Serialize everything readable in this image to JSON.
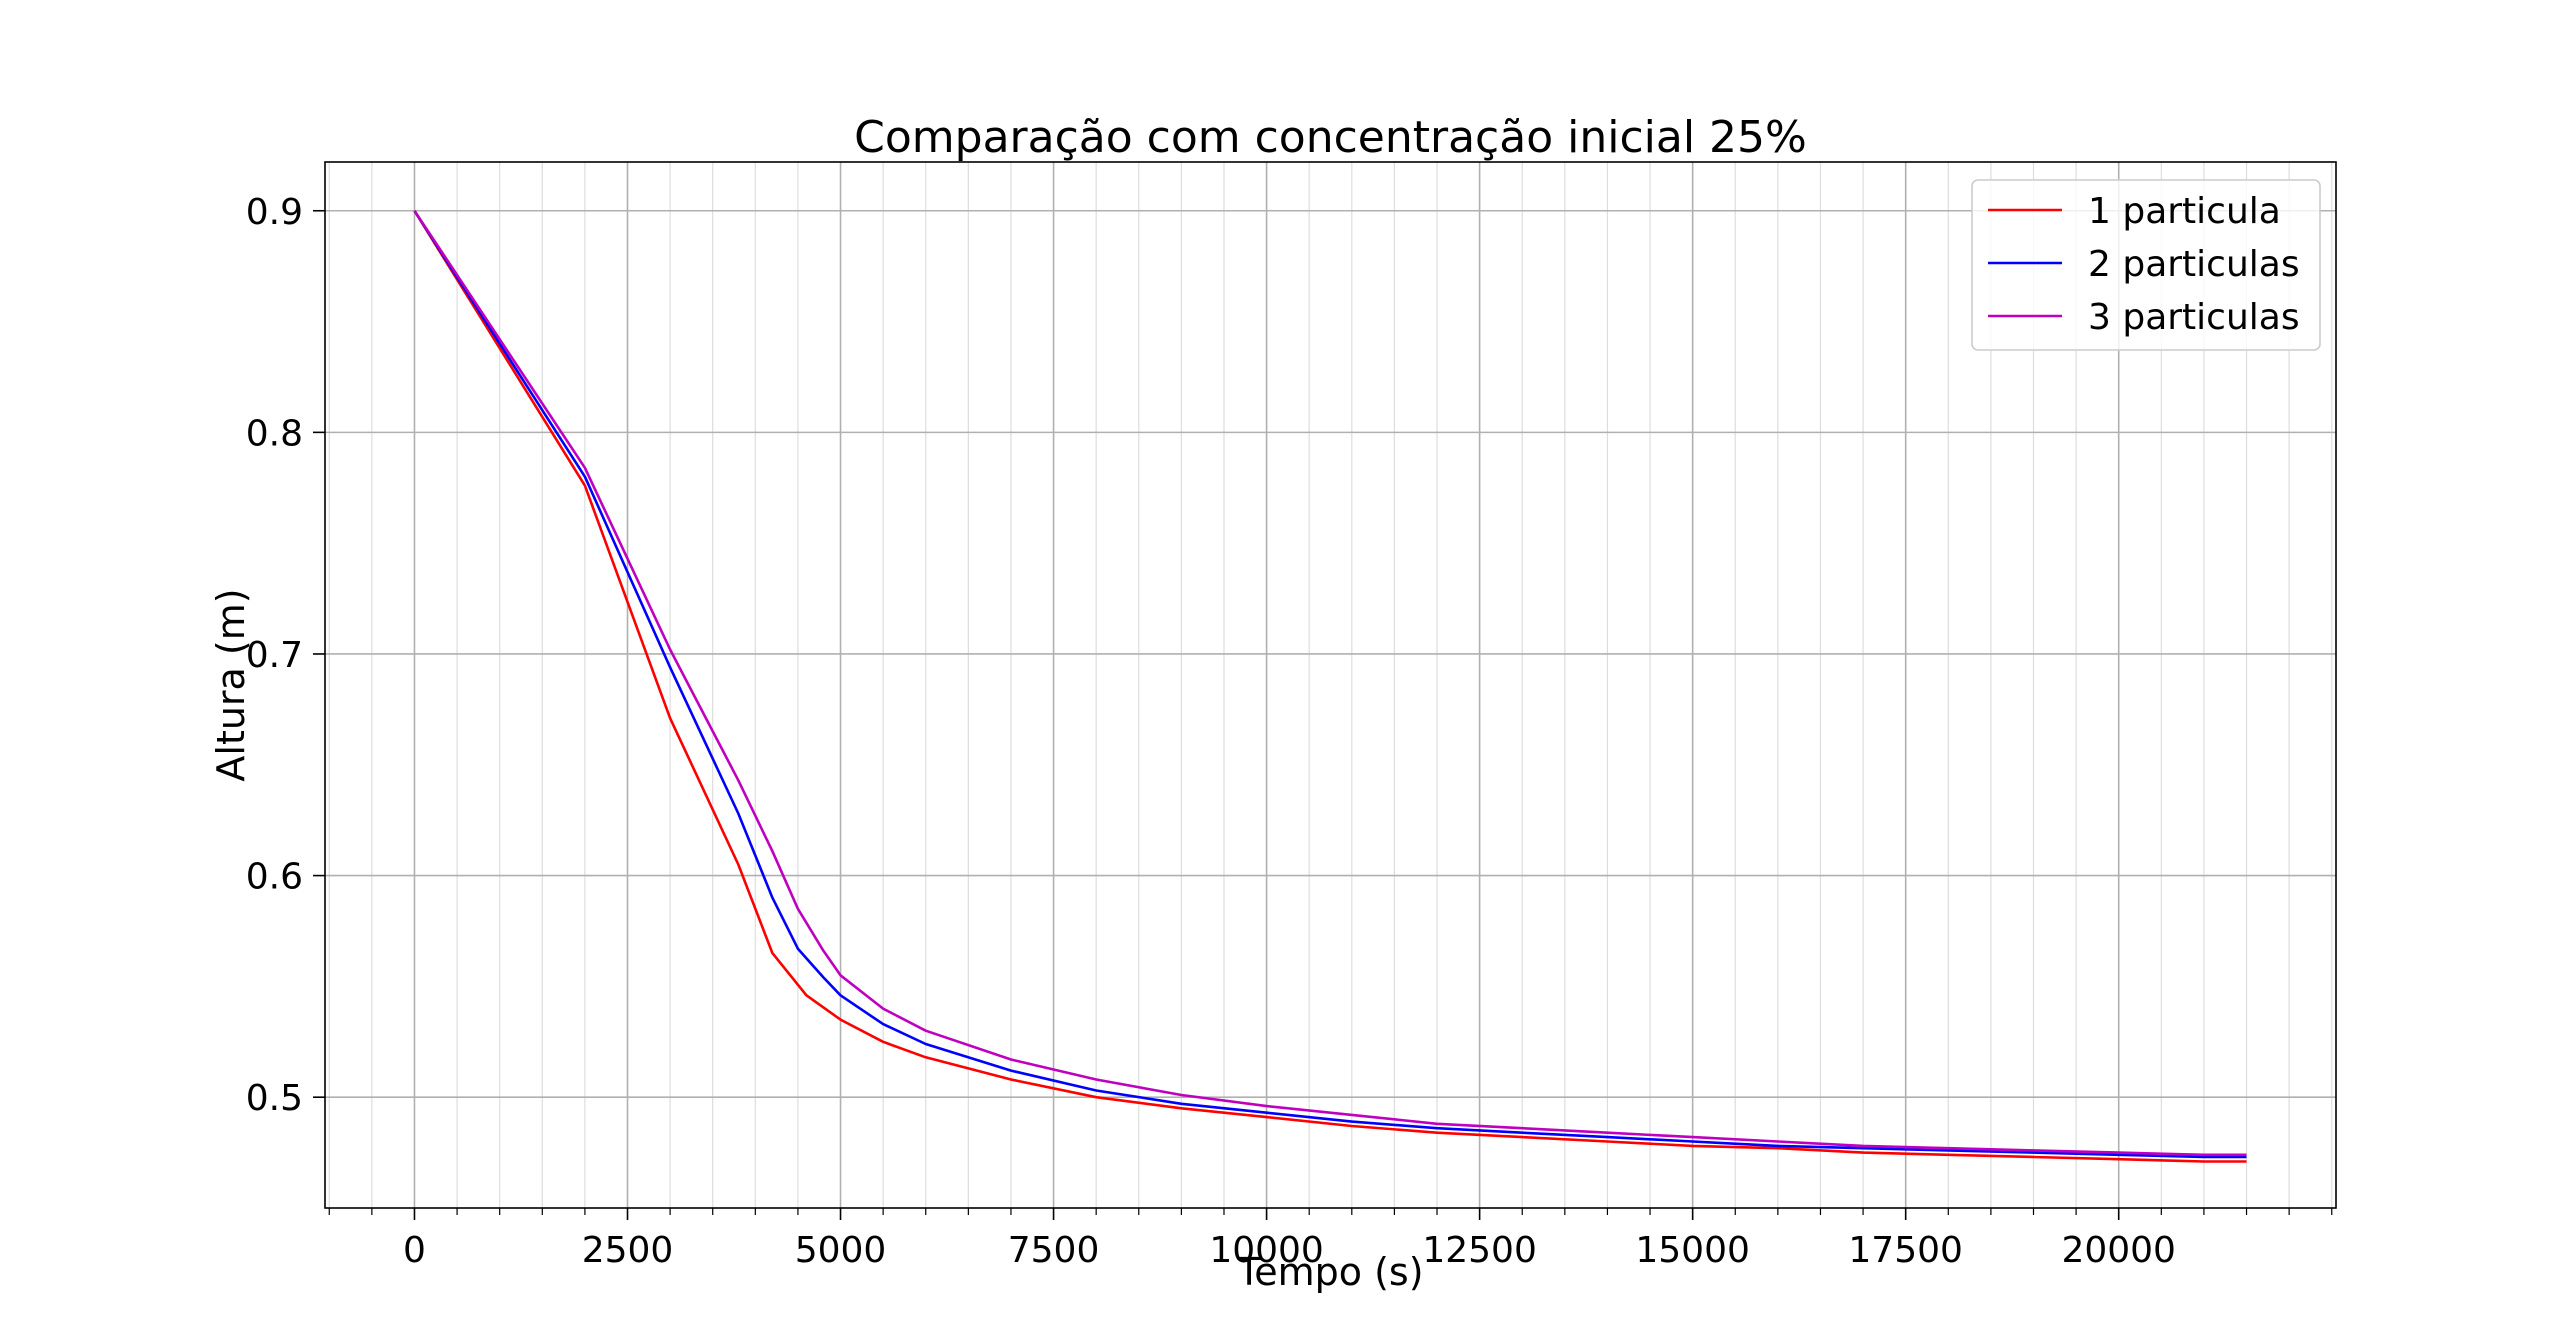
{
  "chart_data": {
    "type": "line",
    "title": "Comparação com concentração inicial 25%",
    "xlabel": "Tempo (s)",
    "ylabel": "Altura (m)",
    "xlim": [
      -1050,
      22550
    ],
    "ylim": [
      0.45,
      0.922
    ],
    "x_major_ticks": [
      0,
      2500,
      5000,
      7500,
      10000,
      12500,
      15000,
      17500,
      20000
    ],
    "x_tick_labels": [
      "0",
      "2500",
      "5000",
      "7500",
      "10000",
      "12500",
      "15000",
      "17500",
      "20000"
    ],
    "x_minor_step": 500,
    "y_major_ticks": [
      0.5,
      0.6,
      0.7,
      0.8,
      0.9
    ],
    "y_tick_labels": [
      "0.5",
      "0.6",
      "0.7",
      "0.8",
      "0.9"
    ],
    "grid": "major and minor",
    "legend_position": "top-right",
    "series": [
      {
        "name": "1 particula",
        "color": "#ff0000",
        "points": [
          [
            0,
            0.9
          ],
          [
            1000,
            0.838
          ],
          [
            2000,
            0.776
          ],
          [
            3000,
            0.671
          ],
          [
            3800,
            0.605
          ],
          [
            4200,
            0.565
          ],
          [
            4600,
            0.546
          ],
          [
            5000,
            0.535
          ],
          [
            5500,
            0.525
          ],
          [
            6000,
            0.518
          ],
          [
            7000,
            0.508
          ],
          [
            8000,
            0.5
          ],
          [
            9000,
            0.495
          ],
          [
            10000,
            0.491
          ],
          [
            11000,
            0.487
          ],
          [
            12000,
            0.484
          ],
          [
            13000,
            0.482
          ],
          [
            14000,
            0.48
          ],
          [
            15000,
            0.478
          ],
          [
            16000,
            0.477
          ],
          [
            17000,
            0.475
          ],
          [
            18000,
            0.474
          ],
          [
            19000,
            0.473
          ],
          [
            20000,
            0.472
          ],
          [
            21000,
            0.471
          ],
          [
            21500,
            0.471
          ]
        ]
      },
      {
        "name": "2 particulas",
        "color": "#0000ff",
        "points": [
          [
            0,
            0.9
          ],
          [
            1000,
            0.84
          ],
          [
            2000,
            0.78
          ],
          [
            3000,
            0.694
          ],
          [
            3800,
            0.628
          ],
          [
            4200,
            0.59
          ],
          [
            4500,
            0.567
          ],
          [
            4800,
            0.554
          ],
          [
            5000,
            0.546
          ],
          [
            5500,
            0.533
          ],
          [
            6000,
            0.524
          ],
          [
            7000,
            0.512
          ],
          [
            8000,
            0.503
          ],
          [
            9000,
            0.497
          ],
          [
            10000,
            0.493
          ],
          [
            11000,
            0.489
          ],
          [
            12000,
            0.486
          ],
          [
            13000,
            0.484
          ],
          [
            14000,
            0.482
          ],
          [
            15000,
            0.48
          ],
          [
            16000,
            0.478
          ],
          [
            17000,
            0.477
          ],
          [
            18000,
            0.476
          ],
          [
            19000,
            0.475
          ],
          [
            20000,
            0.474
          ],
          [
            21000,
            0.473
          ],
          [
            21500,
            0.473
          ]
        ]
      },
      {
        "name": "3 particulas",
        "color": "#bf00bf",
        "points": [
          [
            0,
            0.9
          ],
          [
            1000,
            0.842
          ],
          [
            2000,
            0.784
          ],
          [
            3000,
            0.702
          ],
          [
            3800,
            0.643
          ],
          [
            4200,
            0.611
          ],
          [
            4500,
            0.585
          ],
          [
            4800,
            0.566
          ],
          [
            5000,
            0.555
          ],
          [
            5500,
            0.54
          ],
          [
            6000,
            0.53
          ],
          [
            7000,
            0.517
          ],
          [
            8000,
            0.508
          ],
          [
            9000,
            0.501
          ],
          [
            10000,
            0.496
          ],
          [
            11000,
            0.492
          ],
          [
            12000,
            0.488
          ],
          [
            13000,
            0.486
          ],
          [
            14000,
            0.484
          ],
          [
            15000,
            0.482
          ],
          [
            16000,
            0.48
          ],
          [
            17000,
            0.478
          ],
          [
            18000,
            0.477
          ],
          [
            19000,
            0.476
          ],
          [
            20000,
            0.475
          ],
          [
            21000,
            0.474
          ],
          [
            21500,
            0.474
          ]
        ]
      }
    ]
  }
}
